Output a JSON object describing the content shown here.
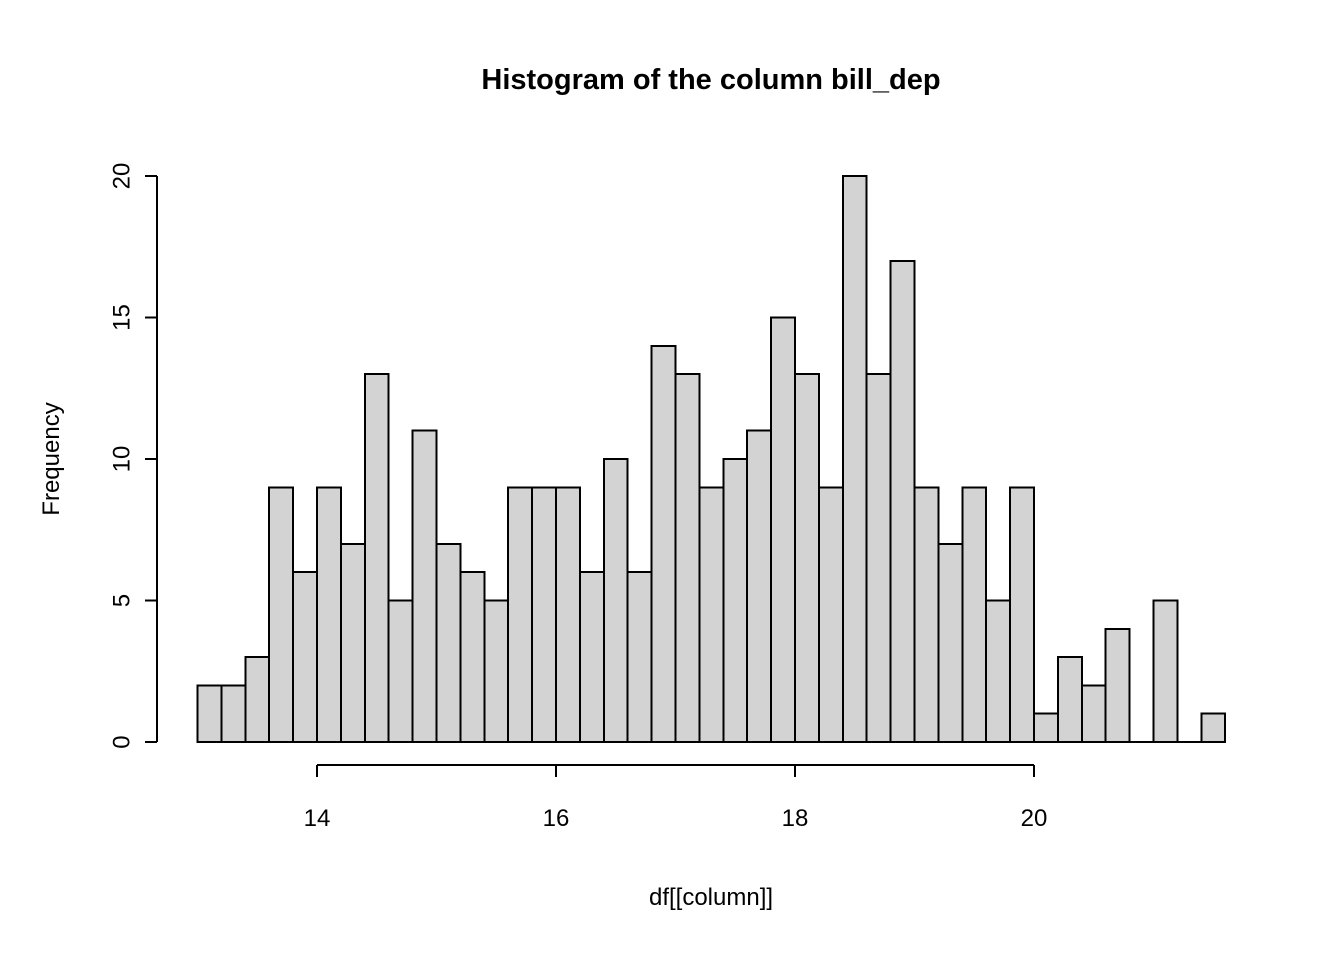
{
  "chart_data": {
    "type": "bar",
    "subtype": "histogram",
    "title": "Histogram of the column bill_dep",
    "xlabel": "df[[column]]",
    "ylabel": "Frequency",
    "bin_start": 13.0,
    "bin_width": 0.2,
    "bin_edges_range": [
      13.0,
      21.6
    ],
    "counts": [
      2,
      2,
      3,
      9,
      6,
      9,
      7,
      13,
      5,
      11,
      7,
      6,
      5,
      9,
      9,
      9,
      6,
      10,
      6,
      14,
      13,
      9,
      10,
      11,
      15,
      13,
      9,
      20,
      13,
      17,
      9,
      7,
      9,
      5,
      9,
      1,
      3,
      2,
      4,
      0,
      5,
      0,
      1
    ],
    "x_ticks": [
      14,
      16,
      18,
      20
    ],
    "y_ticks": [
      0,
      5,
      10,
      15,
      20
    ],
    "xlim": [
      12.656,
      21.944
    ],
    "ylim": [
      -0.8,
      20.8
    ],
    "grid": false,
    "legend": false,
    "colors": {
      "bar_fill": "#d3d3d3",
      "bar_stroke": "#000000",
      "axis": "#000000",
      "text": "#000000",
      "background": "#ffffff"
    }
  }
}
